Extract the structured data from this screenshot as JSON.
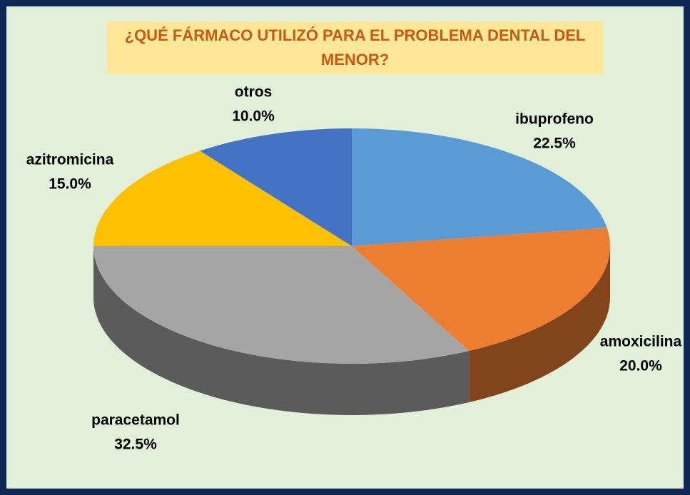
{
  "chart_data": {
    "type": "pie",
    "title": "¿QUÉ FÁRMACO UTILIZÓ PARA EL PROBLEMA DENTAL DEL MENOR?",
    "categories": [
      "ibuprofeno",
      "amoxicilina",
      "paracetamol",
      "azitromicina",
      "otros"
    ],
    "values": [
      22.5,
      20.0,
      32.5,
      15.0,
      10.0
    ],
    "value_labels": [
      "22.5%",
      "20.0%",
      "32.5%",
      "15.0%",
      "10.0%"
    ],
    "colors": [
      "#5b9bd5",
      "#ed7d31",
      "#a5a5a5",
      "#ffc000",
      "#4472c4"
    ]
  }
}
